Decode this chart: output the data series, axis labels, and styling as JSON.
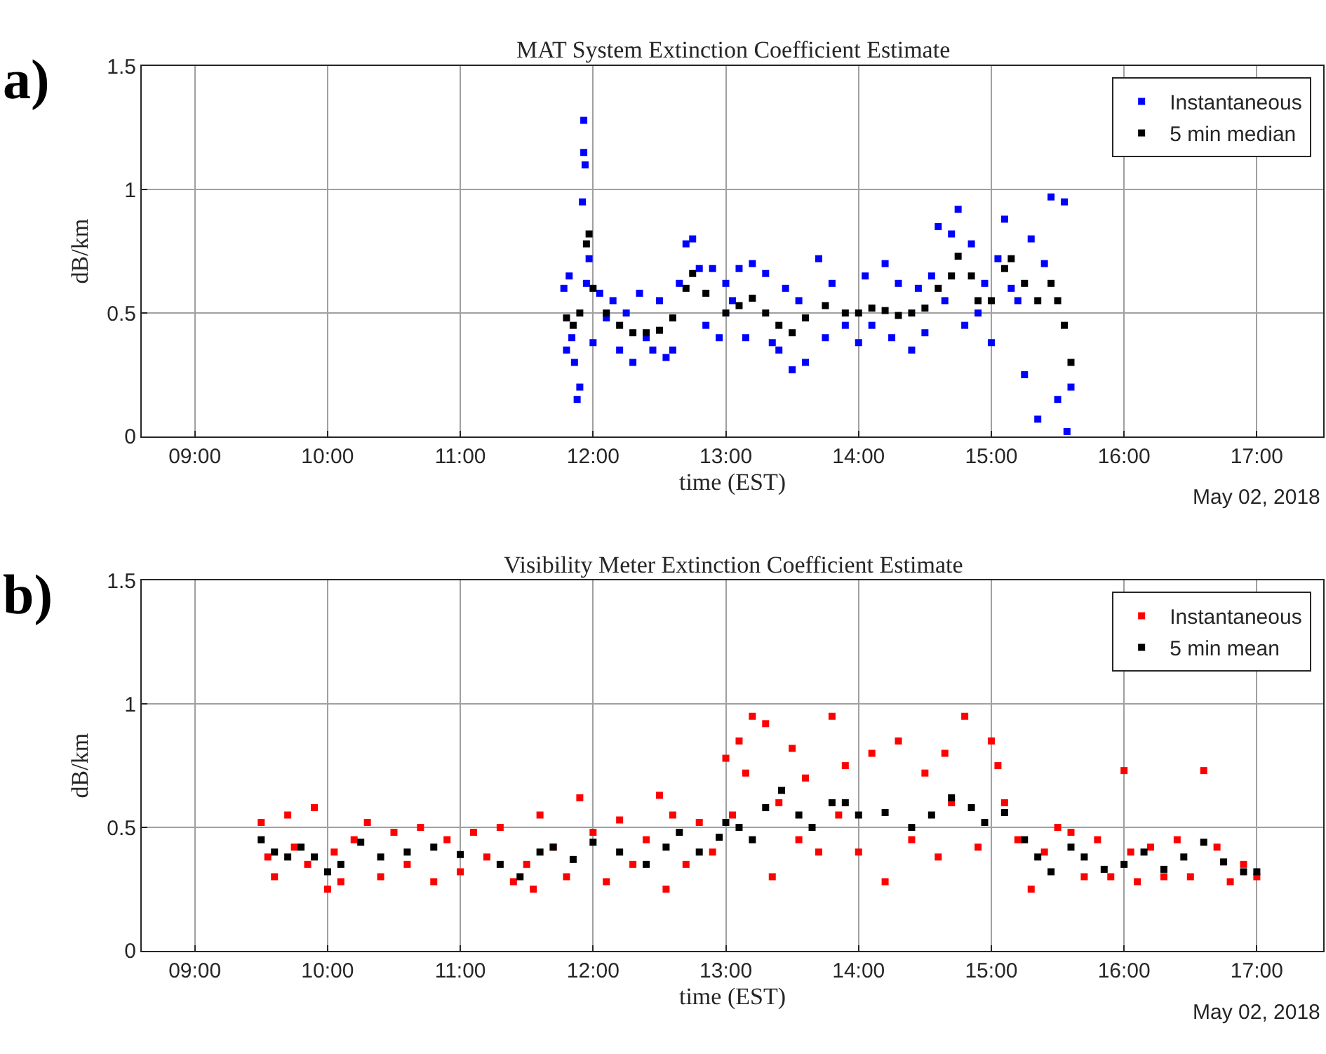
{
  "chart_data": [
    {
      "type": "scatter",
      "title": "MAT System Extinction Coefficient Estimate",
      "xlabel": "time (EST)",
      "ylabel": "dB/km",
      "annotations": [
        "a)",
        "May 02, 2018"
      ],
      "xlim": [
        8.6,
        17.5
      ],
      "ylim": [
        0,
        1.5
      ],
      "xticks": [
        {
          "value": 9,
          "label": "09:00"
        },
        {
          "value": 10,
          "label": "10:00"
        },
        {
          "value": 11,
          "label": "11:00"
        },
        {
          "value": 12,
          "label": "12:00"
        },
        {
          "value": 13,
          "label": "13:00"
        },
        {
          "value": 14,
          "label": "14:00"
        },
        {
          "value": 15,
          "label": "15:00"
        },
        {
          "value": 16,
          "label": "16:00"
        },
        {
          "value": 17,
          "label": "17:00"
        }
      ],
      "yticks": [
        0,
        0.5,
        1,
        1.5
      ],
      "grid": true,
      "legend": "top right",
      "marker": "square",
      "series": [
        {
          "name": "Instantaneous",
          "color": "#0000ff",
          "x": [
            11.78,
            11.8,
            11.82,
            11.84,
            11.86,
            11.88,
            11.9,
            11.92,
            11.93,
            11.93,
            11.94,
            11.95,
            11.97,
            12.0,
            12.05,
            12.1,
            12.15,
            12.2,
            12.25,
            12.3,
            12.35,
            12.4,
            12.45,
            12.5,
            12.55,
            12.6,
            12.65,
            12.7,
            12.75,
            12.8,
            12.85,
            12.9,
            12.95,
            13.0,
            13.05,
            13.1,
            13.15,
            13.2,
            13.3,
            13.35,
            13.4,
            13.45,
            13.5,
            13.55,
            13.6,
            13.7,
            13.75,
            13.8,
            13.9,
            14.0,
            14.05,
            14.1,
            14.2,
            14.25,
            14.3,
            14.4,
            14.45,
            14.5,
            14.55,
            14.6,
            14.65,
            14.7,
            14.75,
            14.8,
            14.85,
            14.9,
            14.95,
            15.0,
            15.05,
            15.1,
            15.15,
            15.2,
            15.25,
            15.3,
            15.35,
            15.4,
            15.45,
            15.5,
            15.55,
            15.57,
            15.6
          ],
          "values": [
            0.6,
            0.35,
            0.65,
            0.4,
            0.3,
            0.15,
            0.2,
            0.95,
            1.28,
            1.15,
            1.1,
            0.62,
            0.72,
            0.38,
            0.58,
            0.48,
            0.55,
            0.35,
            0.5,
            0.3,
            0.58,
            0.4,
            0.35,
            0.55,
            0.32,
            0.35,
            0.62,
            0.78,
            0.8,
            0.68,
            0.45,
            0.68,
            0.4,
            0.62,
            0.55,
            0.68,
            0.4,
            0.7,
            0.66,
            0.38,
            0.35,
            0.6,
            0.27,
            0.55,
            0.3,
            0.72,
            0.4,
            0.62,
            0.45,
            0.38,
            0.65,
            0.45,
            0.7,
            0.4,
            0.62,
            0.35,
            0.6,
            0.42,
            0.65,
            0.85,
            0.55,
            0.82,
            0.92,
            0.45,
            0.78,
            0.5,
            0.62,
            0.38,
            0.72,
            0.88,
            0.6,
            0.55,
            0.25,
            0.8,
            0.07,
            0.7,
            0.97,
            0.15,
            0.95,
            0.02,
            0.2
          ]
        },
        {
          "name": "5 min median",
          "color": "#000000",
          "x": [
            11.8,
            11.85,
            11.9,
            11.95,
            11.97,
            12.0,
            12.1,
            12.2,
            12.3,
            12.4,
            12.5,
            12.6,
            12.7,
            12.75,
            12.85,
            13.0,
            13.1,
            13.2,
            13.3,
            13.4,
            13.5,
            13.6,
            13.75,
            13.9,
            14.0,
            14.1,
            14.2,
            14.3,
            14.4,
            14.5,
            14.6,
            14.7,
            14.75,
            14.85,
            14.9,
            15.0,
            15.1,
            15.15,
            15.25,
            15.35,
            15.45,
            15.5,
            15.55,
            15.6
          ],
          "values": [
            0.48,
            0.45,
            0.5,
            0.78,
            0.82,
            0.6,
            0.5,
            0.45,
            0.42,
            0.42,
            0.43,
            0.48,
            0.6,
            0.66,
            0.58,
            0.5,
            0.53,
            0.56,
            0.5,
            0.45,
            0.42,
            0.48,
            0.53,
            0.5,
            0.5,
            0.52,
            0.51,
            0.49,
            0.5,
            0.52,
            0.6,
            0.65,
            0.73,
            0.65,
            0.55,
            0.55,
            0.68,
            0.72,
            0.62,
            0.55,
            0.62,
            0.55,
            0.45,
            0.3
          ]
        }
      ]
    },
    {
      "type": "scatter",
      "title": "Visibility Meter Extinction Coefficient Estimate",
      "xlabel": "time (EST)",
      "ylabel": "dB/km",
      "annotations": [
        "b)",
        "May 02, 2018"
      ],
      "xlim": [
        8.6,
        17.5
      ],
      "ylim": [
        0,
        1.5
      ],
      "xticks": [
        {
          "value": 9,
          "label": "09:00"
        },
        {
          "value": 10,
          "label": "10:00"
        },
        {
          "value": 11,
          "label": "11:00"
        },
        {
          "value": 12,
          "label": "12:00"
        },
        {
          "value": 13,
          "label": "13:00"
        },
        {
          "value": 14,
          "label": "14:00"
        },
        {
          "value": 15,
          "label": "15:00"
        },
        {
          "value": 16,
          "label": "16:00"
        },
        {
          "value": 17,
          "label": "17:00"
        }
      ],
      "yticks": [
        0,
        0.5,
        1,
        1.5
      ],
      "grid": true,
      "legend": "top right",
      "marker": "square",
      "series": [
        {
          "name": "Instantaneous",
          "color": "#ff0000",
          "x": [
            9.5,
            9.55,
            9.6,
            9.7,
            9.75,
            9.85,
            9.9,
            10.0,
            10.05,
            10.1,
            10.2,
            10.3,
            10.4,
            10.5,
            10.6,
            10.7,
            10.8,
            10.9,
            11.0,
            11.1,
            11.2,
            11.3,
            11.4,
            11.5,
            11.55,
            11.6,
            11.7,
            11.8,
            11.9,
            12.0,
            12.1,
            12.2,
            12.3,
            12.4,
            12.5,
            12.55,
            12.6,
            12.7,
            12.8,
            12.9,
            13.0,
            13.05,
            13.1,
            13.15,
            13.2,
            13.3,
            13.35,
            13.4,
            13.5,
            13.55,
            13.6,
            13.7,
            13.8,
            13.85,
            13.9,
            14.0,
            14.1,
            14.2,
            14.3,
            14.4,
            14.5,
            14.6,
            14.65,
            14.7,
            14.8,
            14.9,
            15.0,
            15.05,
            15.1,
            15.2,
            15.3,
            15.4,
            15.5,
            15.6,
            15.7,
            15.8,
            15.9,
            16.0,
            16.05,
            16.1,
            16.2,
            16.3,
            16.4,
            16.5,
            16.6,
            16.7,
            16.8,
            16.9,
            17.0
          ],
          "values": [
            0.52,
            0.38,
            0.3,
            0.55,
            0.42,
            0.35,
            0.58,
            0.25,
            0.4,
            0.28,
            0.45,
            0.52,
            0.3,
            0.48,
            0.35,
            0.5,
            0.28,
            0.45,
            0.32,
            0.48,
            0.38,
            0.5,
            0.28,
            0.35,
            0.25,
            0.55,
            0.42,
            0.3,
            0.62,
            0.48,
            0.28,
            0.53,
            0.35,
            0.45,
            0.63,
            0.25,
            0.55,
            0.35,
            0.52,
            0.4,
            0.78,
            0.55,
            0.85,
            0.72,
            0.95,
            0.92,
            0.3,
            0.6,
            0.82,
            0.45,
            0.7,
            0.4,
            0.95,
            0.55,
            0.75,
            0.4,
            0.8,
            0.28,
            0.85,
            0.45,
            0.72,
            0.38,
            0.8,
            0.6,
            0.95,
            0.42,
            0.85,
            0.75,
            0.6,
            0.45,
            0.25,
            0.4,
            0.5,
            0.48,
            0.3,
            0.45,
            0.3,
            0.73,
            0.4,
            0.28,
            0.42,
            0.3,
            0.45,
            0.3,
            0.73,
            0.42,
            0.28,
            0.35,
            0.3
          ]
        },
        {
          "name": "5 min mean",
          "color": "#000000",
          "x": [
            9.5,
            9.6,
            9.7,
            9.8,
            9.9,
            10.0,
            10.1,
            10.25,
            10.4,
            10.6,
            10.8,
            11.0,
            11.3,
            11.45,
            11.6,
            11.7,
            11.85,
            12.0,
            12.2,
            12.4,
            12.55,
            12.65,
            12.8,
            12.95,
            13.0,
            13.1,
            13.2,
            13.3,
            13.42,
            13.55,
            13.65,
            13.8,
            13.9,
            14.0,
            14.2,
            14.4,
            14.55,
            14.7,
            14.85,
            14.95,
            15.1,
            15.25,
            15.35,
            15.45,
            15.6,
            15.7,
            15.85,
            16.0,
            16.15,
            16.3,
            16.45,
            16.6,
            16.75,
            16.9,
            17.0
          ],
          "values": [
            0.45,
            0.4,
            0.38,
            0.42,
            0.38,
            0.32,
            0.35,
            0.44,
            0.38,
            0.4,
            0.42,
            0.39,
            0.35,
            0.3,
            0.4,
            0.42,
            0.37,
            0.44,
            0.4,
            0.35,
            0.42,
            0.48,
            0.4,
            0.46,
            0.52,
            0.5,
            0.45,
            0.58,
            0.65,
            0.55,
            0.5,
            0.6,
            0.6,
            0.55,
            0.56,
            0.5,
            0.55,
            0.62,
            0.58,
            0.52,
            0.56,
            0.45,
            0.38,
            0.32,
            0.42,
            0.38,
            0.33,
            0.35,
            0.4,
            0.33,
            0.38,
            0.44,
            0.36,
            0.32,
            0.32
          ]
        }
      ]
    }
  ]
}
